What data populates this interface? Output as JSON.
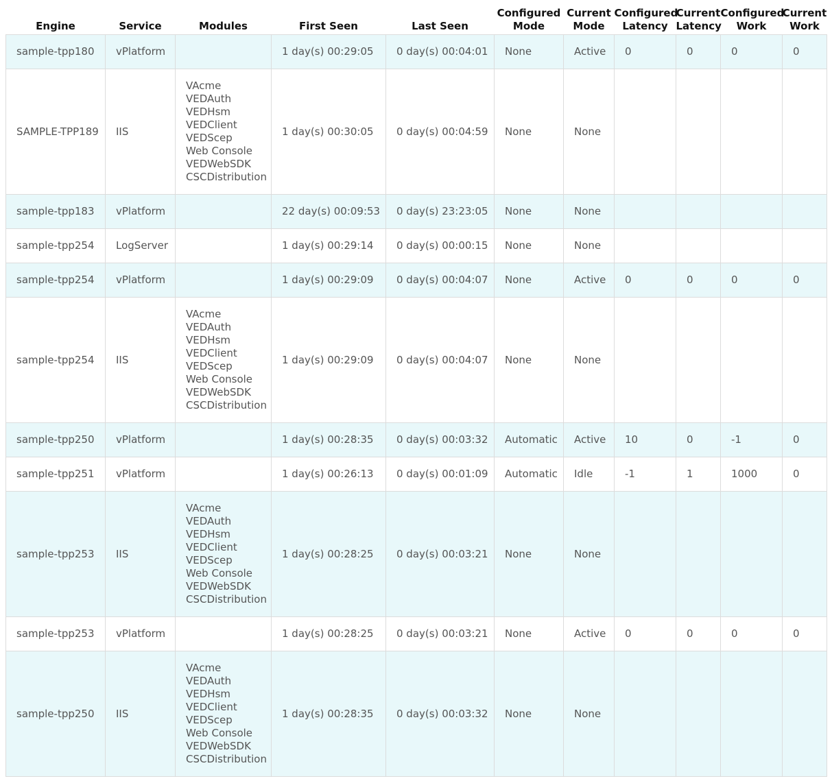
{
  "table": {
    "headers": [
      "Engine",
      "Service",
      "Modules",
      "First Seen",
      "Last Seen",
      "Configured Mode",
      "Current Mode",
      "Configured Latency",
      "Current Latency",
      "Configured Work",
      "Current Work"
    ],
    "rows": [
      [
        "sample-tpp180",
        "vPlatform",
        [],
        "1 day(s) 00:29:05",
        "0 day(s) 00:04:01",
        "None",
        "Active",
        "0",
        "0",
        "0",
        "0"
      ],
      [
        "SAMPLE-TPP189",
        "IIS",
        [
          "VAcme",
          "VEDAuth",
          "VEDHsm",
          "VEDClient",
          "VEDScep",
          "Web Console",
          "VEDWebSDK",
          "CSCDistribution"
        ],
        "1 day(s) 00:30:05",
        "0 day(s) 00:04:59",
        "None",
        "None",
        null,
        null,
        null,
        null
      ],
      [
        "sample-tpp183",
        "vPlatform",
        [],
        "22 day(s) 00:09:53",
        "0 day(s) 23:23:05",
        "None",
        "None",
        null,
        null,
        null,
        null
      ],
      [
        "sample-tpp254",
        "LogServer",
        [],
        "1 day(s) 00:29:14",
        "0 day(s) 00:00:15",
        "None",
        "None",
        null,
        null,
        null,
        null
      ],
      [
        "sample-tpp254",
        "vPlatform",
        [],
        "1 day(s) 00:29:09",
        "0 day(s) 00:04:07",
        "None",
        "Active",
        "0",
        "0",
        "0",
        "0"
      ],
      [
        "sample-tpp254",
        "IIS",
        [
          "VAcme",
          "VEDAuth",
          "VEDHsm",
          "VEDClient",
          "VEDScep",
          "Web Console",
          "VEDWebSDK",
          "CSCDistribution"
        ],
        "1 day(s) 00:29:09",
        "0 day(s) 00:04:07",
        "None",
        "None",
        null,
        null,
        null,
        null
      ],
      [
        "sample-tpp250",
        "vPlatform",
        [],
        "1 day(s) 00:28:35",
        "0 day(s) 00:03:32",
        "Automatic",
        "Active",
        "10",
        "0",
        "-1",
        "0"
      ],
      [
        "sample-tpp251",
        "vPlatform",
        [],
        "1 day(s) 00:26:13",
        "0 day(s) 00:01:09",
        "Automatic",
        "Idle",
        "-1",
        "1",
        "1000",
        "0"
      ],
      [
        "sample-tpp253",
        "IIS",
        [
          "VAcme",
          "VEDAuth",
          "VEDHsm",
          "VEDClient",
          "VEDScep",
          "Web Console",
          "VEDWebSDK",
          "CSCDistribution"
        ],
        "1 day(s) 00:28:25",
        "0 day(s) 00:03:21",
        "None",
        "None",
        null,
        null,
        null,
        null
      ],
      [
        "sample-tpp253",
        "vPlatform",
        [],
        "1 day(s) 00:28:25",
        "0 day(s) 00:03:21",
        "None",
        "Active",
        "0",
        "0",
        "0",
        "0"
      ],
      [
        "sample-tpp250",
        "IIS",
        [
          "VAcme",
          "VEDAuth",
          "VEDHsm",
          "VEDClient",
          "VEDScep",
          "Web Console",
          "VEDWebSDK",
          "CSCDistribution"
        ],
        "1 day(s) 00:28:35",
        "0 day(s) 00:03:32",
        "None",
        "None",
        null,
        null,
        null,
        null
      ]
    ]
  }
}
